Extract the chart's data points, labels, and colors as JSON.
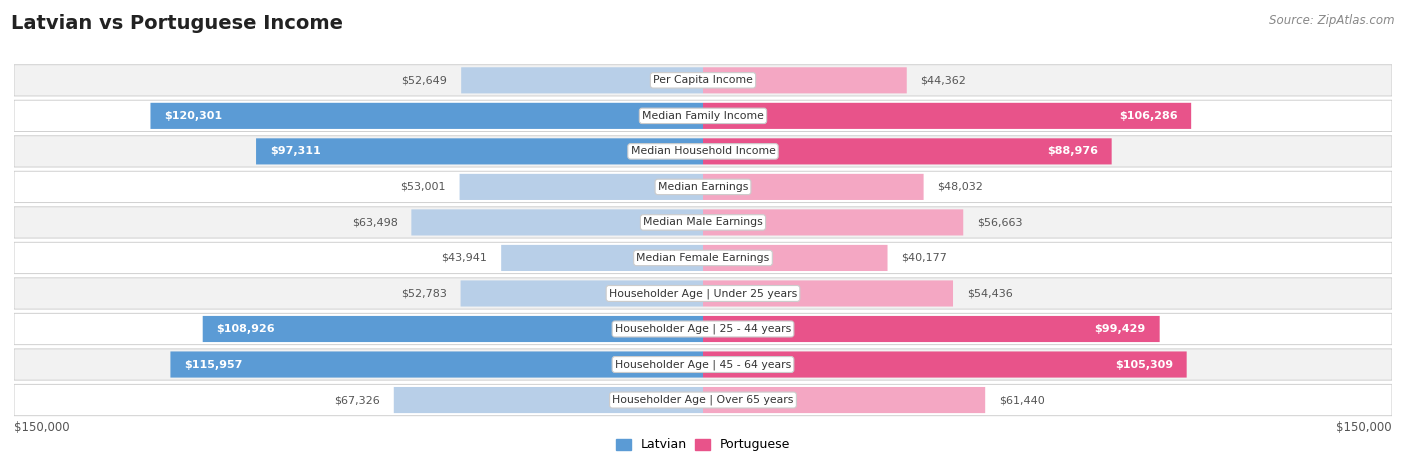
{
  "title": "Latvian vs Portuguese Income",
  "source": "Source: ZipAtlas.com",
  "categories": [
    "Per Capita Income",
    "Median Family Income",
    "Median Household Income",
    "Median Earnings",
    "Median Male Earnings",
    "Median Female Earnings",
    "Householder Age | Under 25 years",
    "Householder Age | 25 - 44 years",
    "Householder Age | 45 - 64 years",
    "Householder Age | Over 65 years"
  ],
  "latvian": [
    52649,
    120301,
    97311,
    53001,
    63498,
    43941,
    52783,
    108926,
    115957,
    67326
  ],
  "portuguese": [
    44362,
    106286,
    88976,
    48032,
    56663,
    40177,
    54436,
    99429,
    105309,
    61440
  ],
  "latvian_labels": [
    "$52,649",
    "$120,301",
    "$97,311",
    "$53,001",
    "$63,498",
    "$43,941",
    "$52,783",
    "$108,926",
    "$115,957",
    "$67,326"
  ],
  "portuguese_labels": [
    "$44,362",
    "$106,286",
    "$88,976",
    "$48,032",
    "$56,663",
    "$40,177",
    "$54,436",
    "$99,429",
    "$105,309",
    "$61,440"
  ],
  "max_val": 150000,
  "latvian_color_large": "#5b9bd5",
  "latvian_color_small": "#b8cfe8",
  "portuguese_color_large": "#e8538a",
  "portuguese_color_small": "#f4a7c3",
  "background_color": "#ffffff",
  "row_bg_even": "#f2f2f2",
  "row_bg_odd": "#ffffff",
  "label_threshold": 80000,
  "axis_label_color": "#555555",
  "cat_label_color": "#333333",
  "title_color": "#222222",
  "source_color": "#888888"
}
